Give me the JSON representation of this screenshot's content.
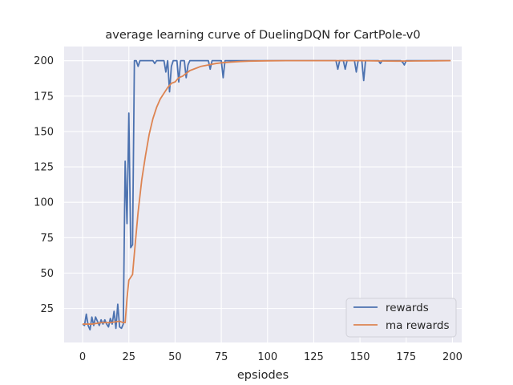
{
  "chart_data": {
    "type": "line",
    "title": "average learning curve of DuelingDQN for CartPole-v0",
    "xlabel": "epsiodes",
    "ylabel": "",
    "xlim": [
      -10,
      205
    ],
    "ylim": [
      1,
      210
    ],
    "xticks": [
      0,
      25,
      50,
      75,
      100,
      125,
      150,
      175,
      200
    ],
    "yticks": [
      25,
      50,
      75,
      100,
      125,
      150,
      175,
      200
    ],
    "grid": true,
    "legend_position": "lower-right",
    "background_color": "#eaeaf2",
    "grid_color": "#ffffff",
    "series": [
      {
        "name": "rewards",
        "color": "#4c72b0",
        "points": [
          [
            0,
            14
          ],
          [
            1,
            13
          ],
          [
            2,
            21
          ],
          [
            3,
            13
          ],
          [
            4,
            10
          ],
          [
            5,
            19
          ],
          [
            6,
            13
          ],
          [
            7,
            19
          ],
          [
            8,
            16
          ],
          [
            9,
            13
          ],
          [
            10,
            17
          ],
          [
            11,
            14
          ],
          [
            12,
            17
          ],
          [
            13,
            14
          ],
          [
            14,
            12
          ],
          [
            15,
            18
          ],
          [
            16,
            14
          ],
          [
            17,
            23
          ],
          [
            18,
            11
          ],
          [
            19,
            28
          ],
          [
            20,
            12
          ],
          [
            21,
            11
          ],
          [
            22,
            14
          ],
          [
            23,
            129
          ],
          [
            24,
            85
          ],
          [
            25,
            163
          ],
          [
            26,
            68
          ],
          [
            27,
            70
          ],
          [
            28,
            200
          ],
          [
            29,
            200
          ],
          [
            30,
            196
          ],
          [
            31,
            200
          ],
          [
            32,
            200
          ],
          [
            33,
            200
          ],
          [
            34,
            200
          ],
          [
            35,
            200
          ],
          [
            36,
            200
          ],
          [
            37,
            200
          ],
          [
            38,
            200
          ],
          [
            39,
            198
          ],
          [
            40,
            200
          ],
          [
            41,
            200
          ],
          [
            42,
            200
          ],
          [
            43,
            200
          ],
          [
            44,
            200
          ],
          [
            45,
            192
          ],
          [
            46,
            200
          ],
          [
            47,
            178
          ],
          [
            48,
            196
          ],
          [
            49,
            200
          ],
          [
            50,
            200
          ],
          [
            51,
            200
          ],
          [
            52,
            185
          ],
          [
            53,
            200
          ],
          [
            54,
            200
          ],
          [
            55,
            200
          ],
          [
            56,
            188
          ],
          [
            57,
            197
          ],
          [
            58,
            200
          ],
          [
            59,
            200
          ],
          [
            60,
            200
          ],
          [
            61,
            200
          ],
          [
            62,
            200
          ],
          [
            63,
            200
          ],
          [
            64,
            200
          ],
          [
            65,
            200
          ],
          [
            66,
            200
          ],
          [
            67,
            200
          ],
          [
            68,
            200
          ],
          [
            69,
            194
          ],
          [
            70,
            200
          ],
          [
            71,
            200
          ],
          [
            72,
            200
          ],
          [
            73,
            200
          ],
          [
            74,
            200
          ],
          [
            75,
            200
          ],
          [
            76,
            188
          ],
          [
            77,
            200
          ],
          [
            78,
            200
          ],
          [
            79,
            200
          ],
          [
            80,
            200
          ],
          [
            100,
            200
          ],
          [
            120,
            200
          ],
          [
            136,
            200
          ],
          [
            137,
            200
          ],
          [
            138,
            194
          ],
          [
            139,
            200
          ],
          [
            140,
            200
          ],
          [
            141,
            200
          ],
          [
            142,
            194
          ],
          [
            143,
            200
          ],
          [
            144,
            200
          ],
          [
            145,
            200
          ],
          [
            146,
            200
          ],
          [
            147,
            200
          ],
          [
            148,
            192
          ],
          [
            149,
            200
          ],
          [
            150,
            200
          ],
          [
            151,
            200
          ],
          [
            152,
            186
          ],
          [
            153,
            200
          ],
          [
            154,
            200
          ],
          [
            155,
            200
          ],
          [
            156,
            200
          ],
          [
            157,
            200
          ],
          [
            158,
            200
          ],
          [
            159,
            200
          ],
          [
            160,
            200
          ],
          [
            161,
            198
          ],
          [
            162,
            200
          ],
          [
            163,
            200
          ],
          [
            170,
            200
          ],
          [
            171,
            200
          ],
          [
            172,
            200
          ],
          [
            173,
            199
          ],
          [
            174,
            197
          ],
          [
            175,
            200
          ],
          [
            176,
            200
          ],
          [
            180,
            200
          ],
          [
            190,
            200
          ],
          [
            199,
            200
          ]
        ]
      },
      {
        "name": "ma rewards",
        "color": "#dd8452",
        "points": [
          [
            0,
            14
          ],
          [
            5,
            14
          ],
          [
            10,
            15
          ],
          [
            15,
            15
          ],
          [
            20,
            16
          ],
          [
            22,
            15
          ],
          [
            23,
            15
          ],
          [
            24,
            32
          ],
          [
            25,
            45
          ],
          [
            27,
            49
          ],
          [
            28,
            64
          ],
          [
            30,
            93
          ],
          [
            32,
            116
          ],
          [
            34,
            133
          ],
          [
            36,
            148
          ],
          [
            38,
            159
          ],
          [
            40,
            167
          ],
          [
            42,
            173
          ],
          [
            44,
            177
          ],
          [
            46,
            181
          ],
          [
            48,
            184
          ],
          [
            50,
            185
          ],
          [
            52,
            188
          ],
          [
            54,
            189
          ],
          [
            56,
            191
          ],
          [
            58,
            193
          ],
          [
            60,
            194
          ],
          [
            62,
            195
          ],
          [
            64,
            196
          ],
          [
            66,
            196.5
          ],
          [
            68,
            197
          ],
          [
            70,
            197.5
          ],
          [
            72,
            198
          ],
          [
            75,
            198.5
          ],
          [
            80,
            199
          ],
          [
            85,
            199.4
          ],
          [
            90,
            199.7
          ],
          [
            100,
            199.9
          ],
          [
            110,
            200
          ],
          [
            150,
            200
          ],
          [
            160,
            199.8
          ],
          [
            170,
            199.7
          ],
          [
            180,
            199.8
          ],
          [
            190,
            199.9
          ],
          [
            199,
            200
          ]
        ]
      }
    ]
  }
}
